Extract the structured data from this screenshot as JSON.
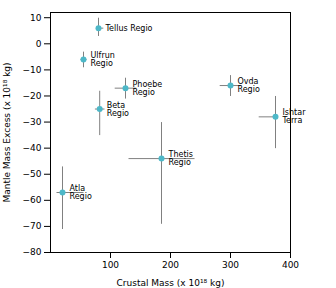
{
  "chart_data": {
    "type": "scatter",
    "xlabel": "Crustal Mass (x 10¹⁸ kg)",
    "ylabel": "Mantle Mass Excess (x 10¹⁸ kg)",
    "points": [
      {
        "label": "Tellus Regio",
        "x": 80,
        "y": 6,
        "xerr_lo": 0,
        "xerr_hi": 8,
        "yerr_lo": 3,
        "yerr_hi": 4
      },
      {
        "label": "Ulfrun\nRegio",
        "x": 55,
        "y": -6,
        "xerr_lo": 5,
        "xerr_hi": 5,
        "yerr_lo": 3,
        "yerr_hi": 3
      },
      {
        "label": "Phoebe\nRegio",
        "x": 125,
        "y": -17,
        "xerr_lo": 18,
        "xerr_hi": 18,
        "yerr_lo": 4,
        "yerr_hi": 4
      },
      {
        "label": "Beta\nRegio",
        "x": 82,
        "y": -25,
        "xerr_lo": 8,
        "xerr_hi": 8,
        "yerr_lo": 10,
        "yerr_hi": 7
      },
      {
        "label": "Ovda\nRegio",
        "x": 300,
        "y": -16,
        "xerr_lo": 18,
        "xerr_hi": 18,
        "yerr_lo": 4,
        "yerr_hi": 4
      },
      {
        "label": "Ishtar\nTerra",
        "x": 375,
        "y": -28,
        "xerr_lo": 28,
        "xerr_hi": 0,
        "yerr_lo": 12,
        "yerr_hi": 8
      },
      {
        "label": "Thetis\nRegio",
        "x": 185,
        "y": -44,
        "xerr_lo": 55,
        "xerr_hi": 55,
        "yerr_lo": 25,
        "yerr_hi": 14
      },
      {
        "label": "Atla\nRegio",
        "x": 20,
        "y": -57,
        "xerr_lo": 10,
        "xerr_hi": 35,
        "yerr_lo": 14,
        "yerr_hi": 10
      }
    ],
    "color": "#4db8c8",
    "error_color": "#808080",
    "xlim": [
      0,
      400
    ],
    "ylim": [
      -80,
      12
    ],
    "xticks": [
      100,
      200,
      300,
      400
    ],
    "yticks": [
      -80,
      -70,
      -60,
      -50,
      -40,
      -30,
      -20,
      -10,
      0,
      10
    ]
  }
}
